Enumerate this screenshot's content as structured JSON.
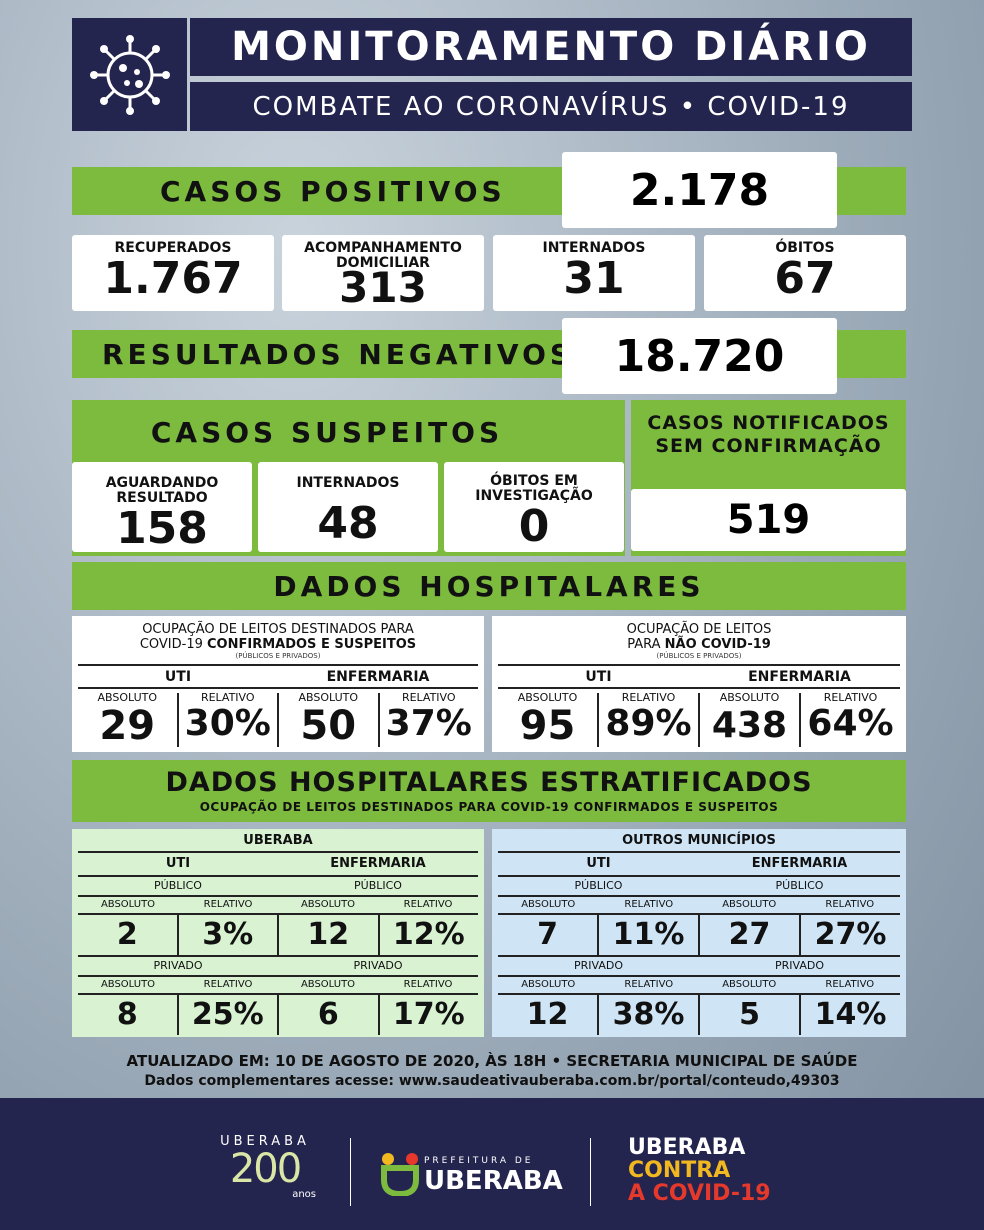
{
  "header": {
    "title": "MONITORAMENTO DIÁRIO",
    "subtitle": "COMBATE AO CORONAVÍRUS • COVID-19"
  },
  "positivos": {
    "label": "CASOS POSITIVOS",
    "value": "2.178",
    "cards": [
      {
        "label": "RECUPERADOS",
        "value": "1.767"
      },
      {
        "label": "ACOMPANHAMENTO DOMICILIAR",
        "value": "313"
      },
      {
        "label": "INTERNADOS",
        "value": "31"
      },
      {
        "label": "ÓBITOS",
        "value": "67"
      }
    ]
  },
  "negativos": {
    "label": "RESULTADOS NEGATIVOS",
    "value": "18.720"
  },
  "suspeitos": {
    "label": "CASOS SUSPEITOS",
    "cards": [
      {
        "label": "AGUARDANDO RESULTADO",
        "value": "158"
      },
      {
        "label": "INTERNADOS",
        "value": "48"
      },
      {
        "label": "ÓBITOS EM INVESTIGAÇÃO",
        "value": "0"
      }
    ]
  },
  "notificados": {
    "label": "CASOS NOTIFICADOS SEM CONFIRMAÇÃO",
    "value": "519"
  },
  "hospitalares": {
    "label": "DADOS HOSPITALARES",
    "left": {
      "title_a": "OCUPAÇÃO DE LEITOS DESTINADOS PARA",
      "title_b": "COVID-19 ",
      "title_bold": "CONFIRMADOS E SUSPEITOS",
      "note": "(PÚBLICOS E PRIVADOS)",
      "uti": "UTI",
      "enfermaria": "ENFERMARIA",
      "absoluto": "ABSOLUTO",
      "relativo": "RELATIVO",
      "uti_abs": "29",
      "uti_rel": "30%",
      "enf_abs": "50",
      "enf_rel": "37%"
    },
    "right": {
      "title_a": "OCUPAÇÃO DE LEITOS",
      "title_b": "PARA ",
      "title_bold": "NÃO COVID-19",
      "note": "(PÚBLICOS E PRIVADOS)",
      "uti": "UTI",
      "enfermaria": "ENFERMARIA",
      "absoluto": "ABSOLUTO",
      "relativo": "RELATIVO",
      "uti_abs": "95",
      "uti_rel": "89%",
      "enf_abs": "438",
      "enf_rel": "64%"
    }
  },
  "estratificados": {
    "label": "DADOS HOSPITALARES ESTRATIFICADOS",
    "sublabel": "OCUPAÇÃO DE LEITOS DESTINADOS PARA COVID-19 CONFIRMADOS E SUSPEITOS",
    "uberaba": {
      "title": "UBERABA",
      "uti": "UTI",
      "enfermaria": "ENFERMARIA",
      "publico": "PÚBLICO",
      "privado": "PRIVADO",
      "absoluto": "ABSOLUTO",
      "relativo": "RELATIVO",
      "uti_pub_abs": "2",
      "uti_pub_rel": "3%",
      "enf_pub_abs": "12",
      "enf_pub_rel": "12%",
      "uti_priv_abs": "8",
      "uti_priv_rel": "25%",
      "enf_priv_abs": "6",
      "enf_priv_rel": "17%"
    },
    "outros": {
      "title": "OUTROS MUNICÍPIOS",
      "uti": "UTI",
      "enfermaria": "ENFERMARIA",
      "publico": "PÚBLICO",
      "privado": "PRIVADO",
      "absoluto": "ABSOLUTO",
      "relativo": "RELATIVO",
      "uti_pub_abs": "7",
      "uti_pub_rel": "11%",
      "enf_pub_abs": "27",
      "enf_pub_rel": "27%",
      "uti_priv_abs": "12",
      "uti_priv_rel": "38%",
      "enf_priv_abs": "5",
      "enf_priv_rel": "14%"
    }
  },
  "footer": {
    "updated": "ATUALIZADO EM: 10 DE AGOSTO DE 2020, ÀS 18H • SECRETARIA MUNICIPAL DE SAÚDE",
    "more": "Dados complementares acesse: www.saudeativauberaba.com.br/portal/conteudo,49303"
  },
  "logos": {
    "uberaba200_top": "UBERABA",
    "uberaba200_num": "200",
    "uberaba200_sub": "anos",
    "prefeitura_small": "PREFEITURA DE",
    "prefeitura_name": "UBERABA",
    "contra_1": "UBERABA",
    "contra_2": "CONTRA",
    "contra_3": "A COVID-19"
  },
  "colors": {
    "dark": "#24254f",
    "green": "#7dbb3f",
    "light_green": "#d8f2d2",
    "light_blue": "#cfe4f5",
    "contra_yellow": "#f2b81f",
    "contra_red": "#e6392b"
  }
}
